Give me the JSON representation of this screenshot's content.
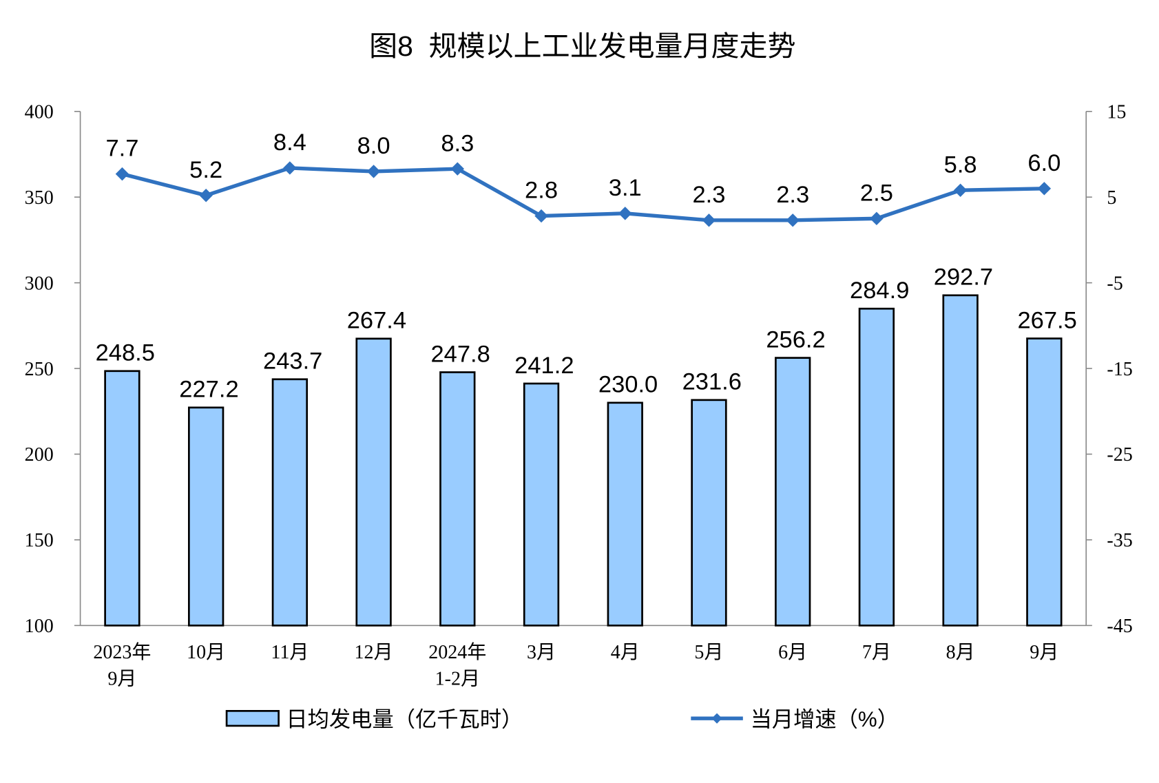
{
  "chart_data": {
    "type": "bar+line",
    "title": "图8  规模以上工业发电量月度走势",
    "categories": [
      [
        "2023年",
        "9月"
      ],
      [
        "10月"
      ],
      [
        "11月"
      ],
      [
        "12月"
      ],
      [
        "2024年",
        "1-2月"
      ],
      [
        "3月"
      ],
      [
        "4月"
      ],
      [
        "5月"
      ],
      [
        "6月"
      ],
      [
        "7月"
      ],
      [
        "8月"
      ],
      [
        "9月"
      ]
    ],
    "series": [
      {
        "name": "日均发电量（亿千瓦时）",
        "type": "bar",
        "axis": "left",
        "color": "#99CCFF",
        "values": [
          248.5,
          227.2,
          243.7,
          267.4,
          247.8,
          241.2,
          230.0,
          231.6,
          256.2,
          284.9,
          292.7,
          267.5
        ]
      },
      {
        "name": "当月增速（%）",
        "type": "line",
        "axis": "right",
        "color": "#3072C0",
        "marker": "diamond",
        "values": [
          7.7,
          5.2,
          8.4,
          8.0,
          8.3,
          2.8,
          3.1,
          2.3,
          2.3,
          2.5,
          5.8,
          6.0
        ]
      }
    ],
    "y_left": {
      "range": [
        100,
        400
      ],
      "ticks": [
        "100",
        "150",
        "200",
        "250",
        "300",
        "350",
        "400"
      ]
    },
    "y_right": {
      "range": [
        -45,
        15
      ],
      "ticks": [
        "-45",
        "-35",
        "-25",
        "-15",
        "-5",
        "5",
        "15"
      ]
    },
    "grid": false,
    "legend_placement": "bottom"
  }
}
